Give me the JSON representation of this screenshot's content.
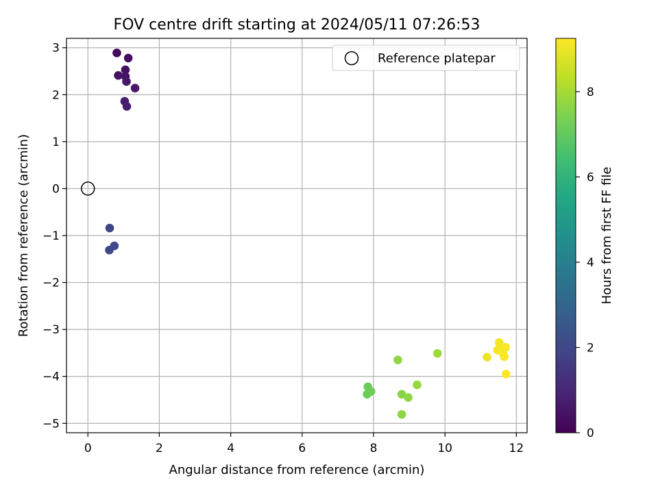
{
  "chart_data": {
    "type": "scatter",
    "title": "FOV centre drift starting at 2024/05/11 07:26:53",
    "xlabel": "Angular distance from reference (arcmin)",
    "ylabel": "Rotation from reference (arcmin)",
    "xlim": [
      -0.6,
      12.3
    ],
    "ylim": [
      -5.2,
      3.2
    ],
    "xticks": [
      0,
      2,
      4,
      6,
      8,
      10,
      12
    ],
    "yticks": [
      -5,
      -4,
      -3,
      -2,
      -1,
      0,
      1,
      2,
      3
    ],
    "grid": true,
    "legend": {
      "position": "top-right",
      "entries": [
        "Reference platepar"
      ]
    },
    "reference_point": {
      "x": 0,
      "y": 0
    },
    "colorbar": {
      "label": "Hours from first FF file",
      "min": 0,
      "max": 9.25,
      "ticks": [
        0,
        2,
        4,
        6,
        8
      ],
      "colormap": "viridis"
    },
    "points": [
      {
        "x": 0.81,
        "y": 2.89,
        "hours": 0.2
      },
      {
        "x": 1.13,
        "y": 2.78,
        "hours": 0.3
      },
      {
        "x": 1.05,
        "y": 2.53,
        "hours": 0.4
      },
      {
        "x": 0.85,
        "y": 2.41,
        "hours": 0.45
      },
      {
        "x": 1.05,
        "y": 2.39,
        "hours": 0.5
      },
      {
        "x": 1.08,
        "y": 2.28,
        "hours": 0.55
      },
      {
        "x": 1.32,
        "y": 2.14,
        "hours": 0.6
      },
      {
        "x": 1.03,
        "y": 1.86,
        "hours": 0.7
      },
      {
        "x": 1.09,
        "y": 1.75,
        "hours": 0.8
      },
      {
        "x": 0.61,
        "y": -0.84,
        "hours": 1.9
      },
      {
        "x": 0.74,
        "y": -1.22,
        "hours": 2.0
      },
      {
        "x": 0.6,
        "y": -1.31,
        "hours": 2.05
      },
      {
        "x": 8.68,
        "y": -3.65,
        "hours": 7.7
      },
      {
        "x": 9.79,
        "y": -3.51,
        "hours": 7.9
      },
      {
        "x": 7.84,
        "y": -4.22,
        "hours": 7.1
      },
      {
        "x": 7.93,
        "y": -4.32,
        "hours": 7.2
      },
      {
        "x": 7.82,
        "y": -4.38,
        "hours": 7.15
      },
      {
        "x": 8.79,
        "y": -4.38,
        "hours": 7.6
      },
      {
        "x": 8.97,
        "y": -4.45,
        "hours": 7.7
      },
      {
        "x": 9.22,
        "y": -4.18,
        "hours": 7.8
      },
      {
        "x": 8.79,
        "y": -4.81,
        "hours": 7.65
      },
      {
        "x": 11.18,
        "y": -3.59,
        "hours": 9.0
      },
      {
        "x": 11.52,
        "y": -3.28,
        "hours": 9.1
      },
      {
        "x": 11.47,
        "y": -3.44,
        "hours": 9.1
      },
      {
        "x": 11.58,
        "y": -3.39,
        "hours": 9.15
      },
      {
        "x": 11.7,
        "y": -3.38,
        "hours": 9.2
      },
      {
        "x": 11.62,
        "y": -3.5,
        "hours": 9.2
      },
      {
        "x": 11.66,
        "y": -3.58,
        "hours": 9.2
      },
      {
        "x": 11.71,
        "y": -3.95,
        "hours": 9.25
      }
    ]
  }
}
